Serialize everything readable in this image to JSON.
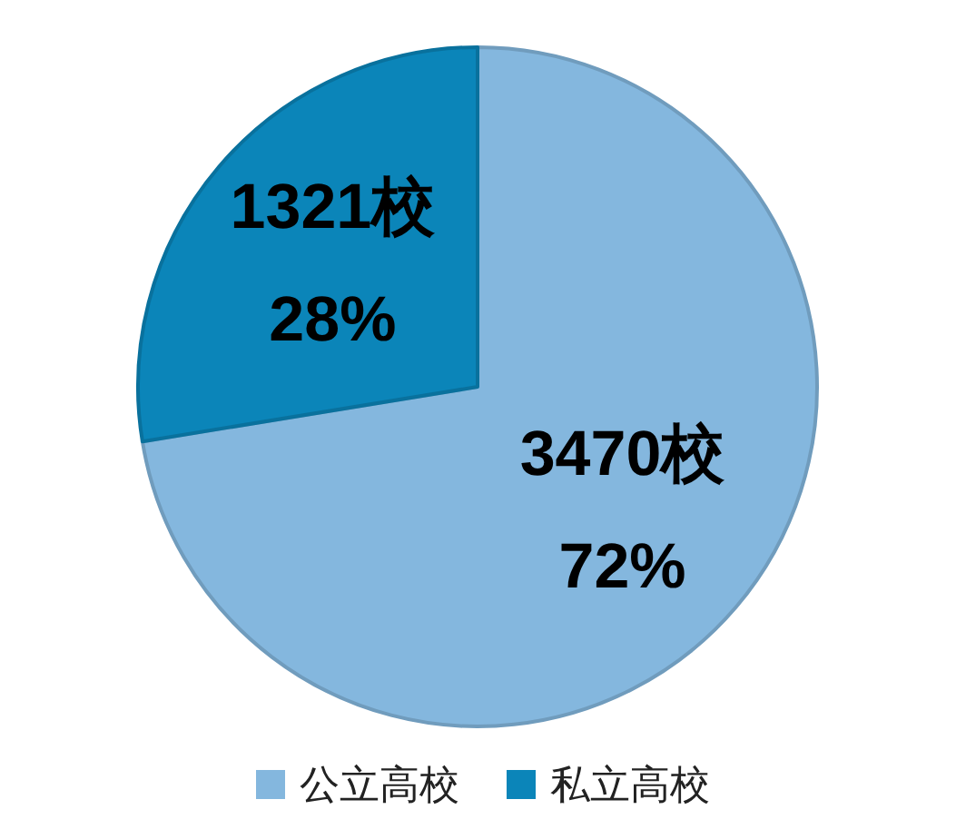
{
  "chart_data": {
    "type": "pie",
    "categories": [
      "公立高校",
      "私立高校"
    ],
    "values": [
      3470,
      1321
    ],
    "colors": [
      "#84b7de",
      "#0b85b9"
    ],
    "value_labels": [
      "3470校",
      "1321校"
    ],
    "annotations": [
      {
        "text": "72%",
        "x": "公立高校"
      },
      {
        "text": "28%",
        "x": "私立高校"
      }
    ],
    "legend": "bottom"
  }
}
